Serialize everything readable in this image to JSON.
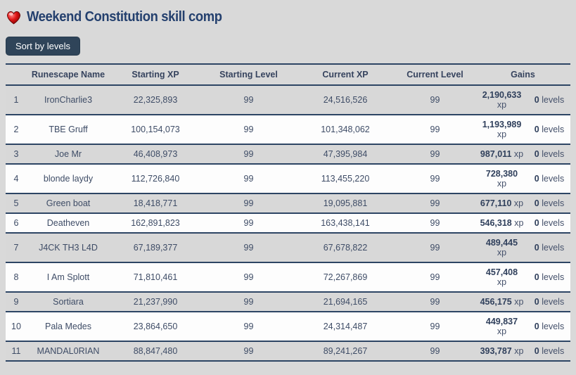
{
  "page": {
    "title": "Weekend Constitution skill comp"
  },
  "icons": {
    "heart": "red-glossy-heart"
  },
  "toolbar": {
    "sort_button_label": "Sort by levels"
  },
  "colors": {
    "page_background": "#d9d9d9",
    "row_alt_background": "#fdfdfd",
    "border_navy": "#2d4564",
    "title_blue": "#24406e",
    "button_background": "#2f4459",
    "button_text": "#ffffff",
    "cell_text": "#3e4c66",
    "heart_red": "#c40000"
  },
  "table": {
    "columns": [
      "Runescape Name",
      "Starting XP",
      "Starting Level",
      "Current XP",
      "Current Level",
      "Gains"
    ],
    "rows": [
      {
        "rank": "1",
        "name": "IronCharlie3",
        "starting_xp": "22,325,893",
        "starting_level": "99",
        "current_xp": "24,516,526",
        "current_level": "99",
        "gains_xp": "2,190,633",
        "gains_xp_unit": "xp",
        "gains_xp_wrapped": true,
        "gains_levels": "0",
        "gains_levels_unit": "levels"
      },
      {
        "rank": "2",
        "name": "TBE Gruff",
        "starting_xp": "100,154,073",
        "starting_level": "99",
        "current_xp": "101,348,062",
        "current_level": "99",
        "gains_xp": "1,193,989",
        "gains_xp_unit": "xp",
        "gains_xp_wrapped": true,
        "gains_levels": "0",
        "gains_levels_unit": "levels"
      },
      {
        "rank": "3",
        "name": "Joe Mr",
        "starting_xp": "46,408,973",
        "starting_level": "99",
        "current_xp": "47,395,984",
        "current_level": "99",
        "gains_xp": "987,011",
        "gains_xp_unit": "xp",
        "gains_xp_wrapped": false,
        "gains_levels": "0",
        "gains_levels_unit": "levels"
      },
      {
        "rank": "4",
        "name": "blonde laydy",
        "starting_xp": "112,726,840",
        "starting_level": "99",
        "current_xp": "113,455,220",
        "current_level": "99",
        "gains_xp": "728,380",
        "gains_xp_unit": "xp",
        "gains_xp_wrapped": true,
        "gains_levels": "0",
        "gains_levels_unit": "levels"
      },
      {
        "rank": "5",
        "name": "Green boat",
        "starting_xp": "18,418,771",
        "starting_level": "99",
        "current_xp": "19,095,881",
        "current_level": "99",
        "gains_xp": "677,110",
        "gains_xp_unit": "xp",
        "gains_xp_wrapped": false,
        "gains_levels": "0",
        "gains_levels_unit": "levels"
      },
      {
        "rank": "6",
        "name": "Deatheven",
        "starting_xp": "162,891,823",
        "starting_level": "99",
        "current_xp": "163,438,141",
        "current_level": "99",
        "gains_xp": "546,318",
        "gains_xp_unit": "xp",
        "gains_xp_wrapped": false,
        "gains_levels": "0",
        "gains_levels_unit": "levels"
      },
      {
        "rank": "7",
        "name": "J4CK TH3 L4D",
        "starting_xp": "67,189,377",
        "starting_level": "99",
        "current_xp": "67,678,822",
        "current_level": "99",
        "gains_xp": "489,445",
        "gains_xp_unit": "xp",
        "gains_xp_wrapped": true,
        "gains_levels": "0",
        "gains_levels_unit": "levels"
      },
      {
        "rank": "8",
        "name": "I Am Splott",
        "starting_xp": "71,810,461",
        "starting_level": "99",
        "current_xp": "72,267,869",
        "current_level": "99",
        "gains_xp": "457,408",
        "gains_xp_unit": "xp",
        "gains_xp_wrapped": true,
        "gains_levels": "0",
        "gains_levels_unit": "levels"
      },
      {
        "rank": "9",
        "name": "Sortiara",
        "starting_xp": "21,237,990",
        "starting_level": "99",
        "current_xp": "21,694,165",
        "current_level": "99",
        "gains_xp": "456,175",
        "gains_xp_unit": "xp",
        "gains_xp_wrapped": false,
        "gains_levels": "0",
        "gains_levels_unit": "levels"
      },
      {
        "rank": "10",
        "name": "Pala Medes",
        "starting_xp": "23,864,650",
        "starting_level": "99",
        "current_xp": "24,314,487",
        "current_level": "99",
        "gains_xp": "449,837",
        "gains_xp_unit": "xp",
        "gains_xp_wrapped": true,
        "gains_levels": "0",
        "gains_levels_unit": "levels"
      },
      {
        "rank": "11",
        "name": "MANDAL0RIAN",
        "starting_xp": "88,847,480",
        "starting_level": "99",
        "current_xp": "89,241,267",
        "current_level": "99",
        "gains_xp": "393,787",
        "gains_xp_unit": "xp",
        "gains_xp_wrapped": false,
        "gains_levels": "0",
        "gains_levels_unit": "levels"
      }
    ]
  }
}
